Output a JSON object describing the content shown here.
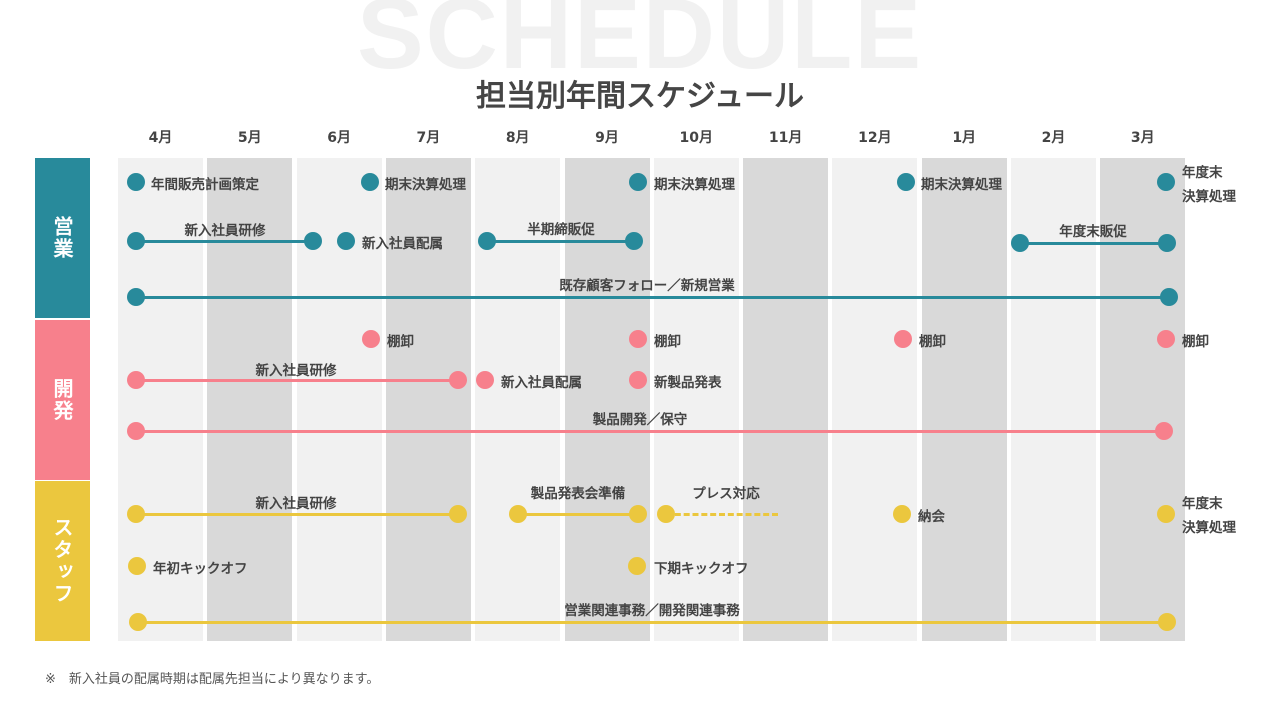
{
  "watermark": "SCHEDULE",
  "title": "担当別年間スケジュール",
  "months": [
    "4月",
    "5月",
    "6月",
    "7月",
    "8月",
    "9月",
    "10月",
    "11月",
    "12月",
    "1月",
    "2月",
    "3月"
  ],
  "categories": [
    {
      "label": "営業",
      "color": "#288a9b"
    },
    {
      "label": "開発",
      "color": "#f7808c"
    },
    {
      "label": "スタッフ",
      "color": "#ebc73e"
    }
  ],
  "sales": {
    "plan": "年間販売計画策定",
    "closing1": "期末決算処理",
    "closing2": "期末決算処理",
    "closing3": "期末決算処理",
    "year_end_1": "年度末",
    "year_end_2": "決算処理",
    "training": "新入社員研修",
    "assignment": "新入社員配属",
    "half_promo": "半期締販促",
    "year_end_promo": "年度末販促",
    "followup": "既存顧客フォロー／新規営業"
  },
  "dev": {
    "inventory1": "棚卸",
    "inventory2": "棚卸",
    "inventory3": "棚卸",
    "inventory4": "棚卸",
    "training": "新入社員研修",
    "assignment": "新入社員配属",
    "launch": "新製品発表",
    "maintenance": "製品開発／保守"
  },
  "staff": {
    "training": "新入社員研修",
    "launch_prep": "製品発表会準備",
    "press": "プレス対応",
    "party": "納会",
    "year_end_1": "年度末",
    "year_end_2": "決算処理",
    "kickoff1": "年初キックオフ",
    "kickoff2": "下期キックオフ",
    "admin": "営業関連事務／開発関連事務"
  },
  "footnote": "※　新入社員の配属時期は配属先担当により異なります。"
}
